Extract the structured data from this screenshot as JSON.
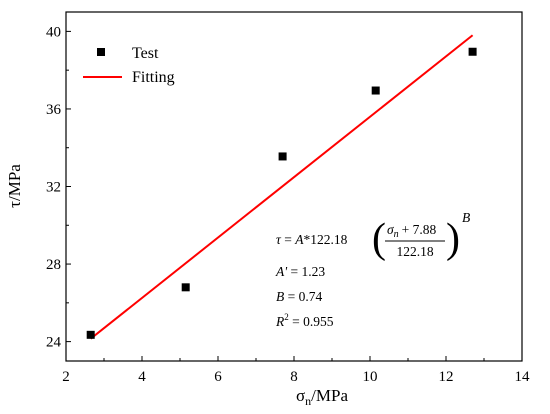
{
  "chart_data": {
    "type": "scatter",
    "xlim": [
      2,
      14
    ],
    "ylim": [
      23,
      41
    ],
    "x_ticks": [
      2,
      4,
      6,
      8,
      10,
      12,
      14
    ],
    "y_ticks": [
      24,
      28,
      32,
      36,
      40
    ],
    "xlabel": {
      "main": "σ",
      "sub": "n",
      "unit": "/MPa"
    },
    "ylabel": "τ/MPa",
    "grid": false,
    "legend_position": "top-left",
    "series": [
      {
        "name": "Test",
        "kind": "marker",
        "color": "#000000",
        "x": [
          2.65,
          5.15,
          7.7,
          10.15,
          12.7
        ],
        "y": [
          24.35,
          26.8,
          33.55,
          36.95,
          38.95
        ]
      },
      {
        "name": "Fitting",
        "kind": "line",
        "color": "#ff0000",
        "x": [
          2.65,
          12.7
        ],
        "y": [
          24.15,
          39.8
        ]
      }
    ],
    "annotation": {
      "equation": {
        "lhs": "τ",
        "eq": "=",
        "a": "A",
        "times": "*122.18",
        "num_var": "σ",
        "num_sub": "n",
        "num_rest": "+ 7.88",
        "den": "122.18",
        "exp": "B"
      },
      "a_label": "A'",
      "a_value": "= 1.23",
      "b_label": "B",
      "b_value": "= 0.74",
      "r_label": "R",
      "r_sup": "2",
      "r_value": "= 0.955"
    }
  }
}
